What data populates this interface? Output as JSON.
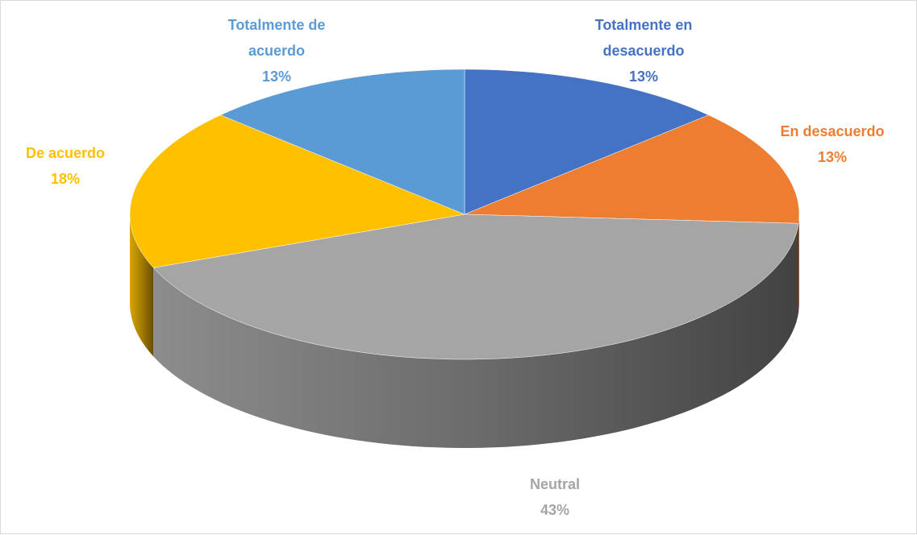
{
  "chart_data": {
    "type": "pie3d",
    "categories": [
      "Totalmente en desacuerdo",
      "En desacuerdo",
      "Neutral",
      "De acuerdo",
      "Totalmente  de acuerdo"
    ],
    "values": [
      13,
      13,
      43,
      18,
      13
    ],
    "value_labels": [
      "13%",
      "13%",
      "43%",
      "18%",
      "13%"
    ],
    "colors": [
      "#4472c4",
      "#ed7d31",
      "#a5a5a5",
      "#ffc000",
      "#5b9bd5"
    ]
  }
}
